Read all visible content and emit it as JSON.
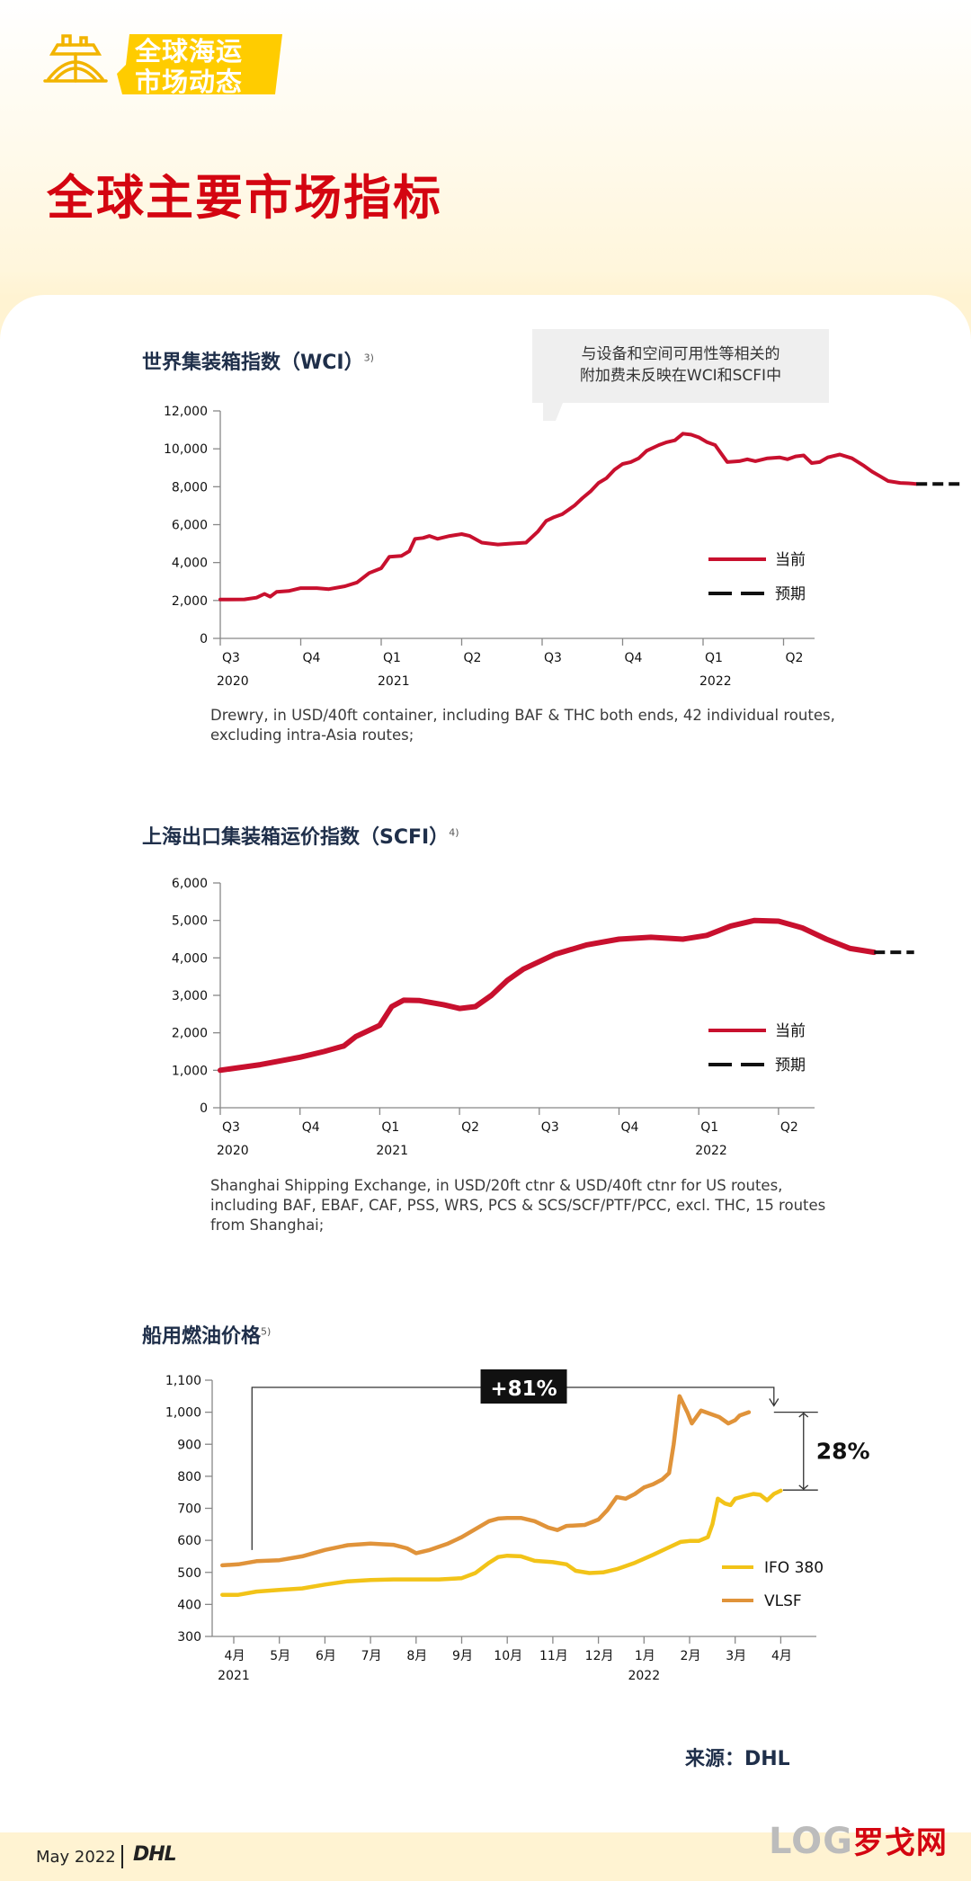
{
  "header": {
    "brand_line1": "全球海运",
    "brand_line2": "市场动态",
    "title": "全球主要市场指标"
  },
  "colors": {
    "dhl_red": "#d40511",
    "current_line": "#c8102e",
    "ifo": "#f2c318",
    "vlsf": "#e0933a",
    "brand_yellow": "#ffcc00"
  },
  "wci": {
    "title": "世界集装箱指数（WCI）",
    "footnote": "3)",
    "callout_line1": "与设备和空间可用性等相关的",
    "callout_line2": "附加费未反映在WCI和SCFI中",
    "note": "Drewry, in USD/40ft container, including BAF & THC both ends, 42 individual routes, excluding intra-Asia routes;"
  },
  "scfi": {
    "title": "上海出口集装箱运价指数（SCFI）",
    "footnote": "4)",
    "note": "Shanghai Shipping Exchange, in USD/20ft ctnr & USD/40ft ctnr for US routes, including BAF, EBAF, CAF, PSS, WRS, PCS & SCS/SCF/PTF/PCC, excl. THC, 15 routes from Shanghai;"
  },
  "fuel": {
    "title": "船用燃油价格",
    "footnote": "5)"
  },
  "source": "来源：DHL",
  "footer": {
    "date": "May 2022",
    "logo_text": "DHL"
  },
  "watermark": {
    "latin": "LOG",
    "cn": "罗戈网"
  },
  "chart_data": [
    {
      "type": "line",
      "title": "世界集装箱指数（WCI）",
      "x_ticks": [
        "Q3",
        "Q4",
        "Q1",
        "Q2",
        "Q3",
        "Q4",
        "Q1",
        "Q2"
      ],
      "year_labels": [
        {
          "at": 0,
          "label": "2020"
        },
        {
          "at": 2,
          "label": "2021"
        },
        {
          "at": 6,
          "label": "2022"
        }
      ],
      "y_ticks": [
        "0",
        "2,000",
        "4,000",
        "6,000",
        "8,000",
        "10,000",
        "12,000"
      ],
      "ylim": [
        0,
        12000
      ],
      "legend": {
        "current": "当前",
        "forecast": "预期"
      },
      "series": [
        {
          "name": "当前",
          "style": "solid",
          "points": [
            [
              0.0,
              2050
            ],
            [
              0.3,
              2060
            ],
            [
              0.45,
              2150
            ],
            [
              0.55,
              2350
            ],
            [
              0.62,
              2200
            ],
            [
              0.7,
              2450
            ],
            [
              0.85,
              2500
            ],
            [
              1.0,
              2650
            ],
            [
              1.2,
              2650
            ],
            [
              1.35,
              2600
            ],
            [
              1.55,
              2750
            ],
            [
              1.7,
              2950
            ],
            [
              1.85,
              3450
            ],
            [
              2.0,
              3700
            ],
            [
              2.1,
              4300
            ],
            [
              2.25,
              4350
            ],
            [
              2.35,
              4600
            ],
            [
              2.42,
              5250
            ],
            [
              2.52,
              5300
            ],
            [
              2.6,
              5400
            ],
            [
              2.7,
              5250
            ],
            [
              2.85,
              5400
            ],
            [
              3.0,
              5500
            ],
            [
              3.1,
              5400
            ],
            [
              3.25,
              5050
            ],
            [
              3.45,
              4950
            ],
            [
              3.6,
              5000
            ],
            [
              3.8,
              5050
            ],
            [
              3.95,
              5650
            ],
            [
              4.05,
              6200
            ],
            [
              4.15,
              6400
            ],
            [
              4.25,
              6550
            ],
            [
              4.4,
              7000
            ],
            [
              4.5,
              7400
            ],
            [
              4.6,
              7750
            ],
            [
              4.7,
              8200
            ],
            [
              4.8,
              8450
            ],
            [
              4.9,
              8900
            ],
            [
              5.0,
              9200
            ],
            [
              5.1,
              9300
            ],
            [
              5.2,
              9500
            ],
            [
              5.3,
              9900
            ],
            [
              5.45,
              10200
            ],
            [
              5.55,
              10350
            ],
            [
              5.65,
              10450
            ],
            [
              5.75,
              10800
            ],
            [
              5.85,
              10750
            ],
            [
              5.95,
              10600
            ],
            [
              6.05,
              10350
            ],
            [
              6.15,
              10200
            ],
            [
              6.3,
              9300
            ],
            [
              6.45,
              9350
            ],
            [
              6.55,
              9450
            ],
            [
              6.65,
              9350
            ],
            [
              6.8,
              9500
            ],
            [
              6.95,
              9550
            ],
            [
              7.05,
              9450
            ],
            [
              7.15,
              9600
            ],
            [
              7.25,
              9650
            ],
            [
              7.35,
              9250
            ],
            [
              7.45,
              9300
            ],
            [
              7.55,
              9550
            ],
            [
              7.7,
              9700
            ],
            [
              7.85,
              9500
            ],
            [
              8.0,
              9100
            ],
            [
              8.1,
              8800
            ],
            [
              8.2,
              8550
            ],
            [
              8.3,
              8300
            ],
            [
              8.45,
              8200
            ],
            [
              8.55,
              8180
            ],
            [
              8.65,
              8150
            ]
          ]
        },
        {
          "name": "预期",
          "style": "dashed",
          "points": [
            [
              8.65,
              8150
            ],
            [
              9.25,
              8150
            ]
          ]
        }
      ]
    },
    {
      "type": "line",
      "title": "上海出口集装箱运价指数（SCFI）",
      "x_ticks": [
        "Q3",
        "Q4",
        "Q1",
        "Q2",
        "Q3",
        "Q4",
        "Q1",
        "Q2"
      ],
      "year_labels": [
        {
          "at": 0,
          "label": "2020"
        },
        {
          "at": 2,
          "label": "2021"
        },
        {
          "at": 6,
          "label": "2022"
        }
      ],
      "y_ticks": [
        "0",
        "1,000",
        "2,000",
        "3,000",
        "4,000",
        "5,000",
        "6,000"
      ],
      "ylim": [
        0,
        6000
      ],
      "legend": {
        "current": "当前",
        "forecast": "预期"
      },
      "series": [
        {
          "name": "当前",
          "style": "solid",
          "points": [
            [
              0.0,
              1000
            ],
            [
              0.5,
              1150
            ],
            [
              1.0,
              1350
            ],
            [
              1.3,
              1500
            ],
            [
              1.55,
              1650
            ],
            [
              1.7,
              1900
            ],
            [
              1.9,
              2100
            ],
            [
              2.0,
              2200
            ],
            [
              2.15,
              2700
            ],
            [
              2.3,
              2870
            ],
            [
              2.5,
              2860
            ],
            [
              2.8,
              2750
            ],
            [
              3.0,
              2650
            ],
            [
              3.2,
              2700
            ],
            [
              3.4,
              3000
            ],
            [
              3.6,
              3400
            ],
            [
              3.8,
              3700
            ],
            [
              4.2,
              4100
            ],
            [
              4.6,
              4350
            ],
            [
              5.0,
              4500
            ],
            [
              5.4,
              4550
            ],
            [
              5.8,
              4500
            ],
            [
              6.1,
              4600
            ],
            [
              6.4,
              4850
            ],
            [
              6.7,
              5000
            ],
            [
              7.0,
              4980
            ],
            [
              7.3,
              4800
            ],
            [
              7.6,
              4500
            ],
            [
              7.9,
              4250
            ],
            [
              8.2,
              4150
            ]
          ]
        },
        {
          "name": "预期",
          "style": "dashed",
          "points": [
            [
              8.2,
              4150
            ],
            [
              8.7,
              4150
            ]
          ]
        }
      ]
    },
    {
      "type": "line",
      "title": "船用燃油价格",
      "x_ticks": [
        "4月",
        "5月",
        "6月",
        "7月",
        "8月",
        "9月",
        "10月",
        "11月",
        "12月",
        "1月",
        "2月",
        "3月",
        "4月"
      ],
      "year_labels": [
        {
          "at": 0,
          "label": "2021"
        },
        {
          "at": 9,
          "label": "2022"
        }
      ],
      "y_ticks": [
        "300",
        "400",
        "500",
        "600",
        "700",
        "800",
        "900",
        "1,000",
        "1,100"
      ],
      "ylim": [
        300,
        1100
      ],
      "annotations": {
        "increase": "+81%",
        "gap": "28%"
      },
      "series": [
        {
          "name": "IFO 380",
          "points": [
            [
              -0.25,
              430
            ],
            [
              0.1,
              430
            ],
            [
              0.5,
              440
            ],
            [
              1.0,
              445
            ],
            [
              1.5,
              450
            ],
            [
              2.0,
              462
            ],
            [
              2.5,
              472
            ],
            [
              3.0,
              476
            ],
            [
              3.5,
              478
            ],
            [
              4.0,
              478
            ],
            [
              4.5,
              478
            ],
            [
              5.0,
              482
            ],
            [
              5.3,
              498
            ],
            [
              5.6,
              530
            ],
            [
              5.8,
              548
            ],
            [
              6.0,
              552
            ],
            [
              6.3,
              550
            ],
            [
              6.6,
              536
            ],
            [
              7.0,
              532
            ],
            [
              7.3,
              525
            ],
            [
              7.5,
              505
            ],
            [
              7.8,
              498
            ],
            [
              8.1,
              500
            ],
            [
              8.4,
              510
            ],
            [
              8.8,
              530
            ],
            [
              9.2,
              555
            ],
            [
              9.5,
              575
            ],
            [
              9.8,
              595
            ],
            [
              10.0,
              598
            ],
            [
              10.2,
              598
            ],
            [
              10.4,
              610
            ],
            [
              10.5,
              650
            ],
            [
              10.62,
              730
            ],
            [
              10.78,
              715
            ],
            [
              10.9,
              710
            ],
            [
              11.0,
              730
            ],
            [
              11.2,
              738
            ],
            [
              11.4,
              745
            ],
            [
              11.55,
              742
            ],
            [
              11.7,
              725
            ],
            [
              11.85,
              745
            ],
            [
              12.0,
              755
            ]
          ]
        },
        {
          "name": "VLSF",
          "points": [
            [
              -0.25,
              522
            ],
            [
              0.1,
              525
            ],
            [
              0.5,
              535
            ],
            [
              1.0,
              538
            ],
            [
              1.5,
              550
            ],
            [
              2.0,
              570
            ],
            [
              2.5,
              585
            ],
            [
              3.0,
              590
            ],
            [
              3.5,
              586
            ],
            [
              3.8,
              575
            ],
            [
              4.0,
              560
            ],
            [
              4.3,
              570
            ],
            [
              4.7,
              590
            ],
            [
              5.0,
              610
            ],
            [
              5.3,
              635
            ],
            [
              5.6,
              660
            ],
            [
              5.8,
              668
            ],
            [
              6.0,
              670
            ],
            [
              6.3,
              670
            ],
            [
              6.6,
              660
            ],
            [
              6.9,
              640
            ],
            [
              7.1,
              632
            ],
            [
              7.3,
              645
            ],
            [
              7.7,
              648
            ],
            [
              8.0,
              665
            ],
            [
              8.2,
              695
            ],
            [
              8.4,
              735
            ],
            [
              8.6,
              730
            ],
            [
              8.8,
              745
            ],
            [
              9.0,
              765
            ],
            [
              9.2,
              775
            ],
            [
              9.4,
              790
            ],
            [
              9.55,
              810
            ],
            [
              9.65,
              900
            ],
            [
              9.78,
              1050
            ],
            [
              9.95,
              1000
            ],
            [
              10.05,
              965
            ],
            [
              10.25,
              1005
            ],
            [
              10.45,
              995
            ],
            [
              10.65,
              985
            ],
            [
              10.85,
              965
            ],
            [
              11.0,
              975
            ],
            [
              11.1,
              990
            ],
            [
              11.3,
              1000
            ]
          ]
        }
      ]
    }
  ]
}
